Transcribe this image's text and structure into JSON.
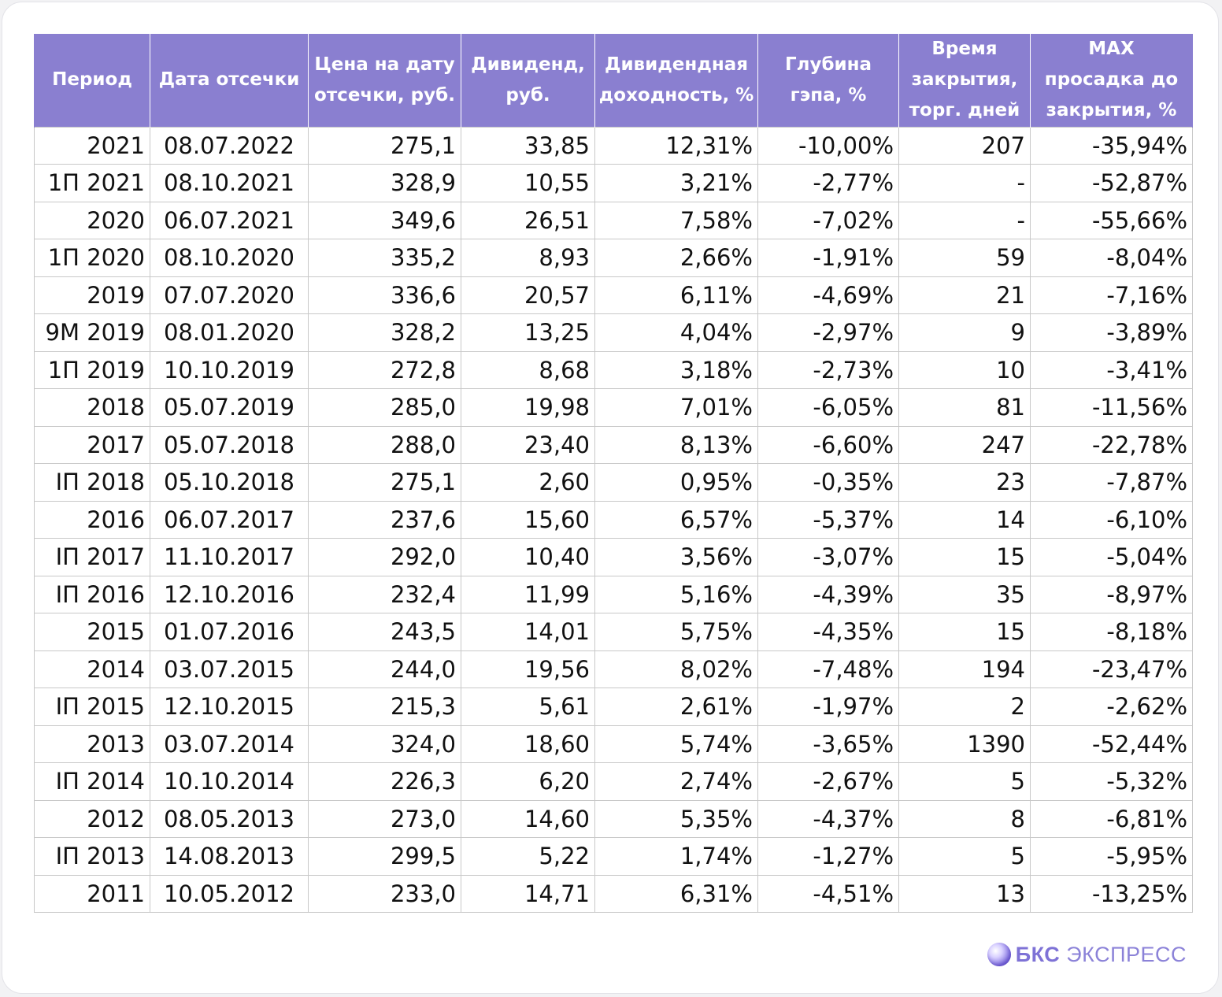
{
  "table": {
    "headers": [
      [
        "Период"
      ],
      [
        "Дата отсечки"
      ],
      [
        "Цена на дату",
        "отсечки, руб."
      ],
      [
        "Дивиденд,",
        "руб."
      ],
      [
        "Дивидендная",
        "доходность, %"
      ],
      [
        "Глубина",
        "гэпа, %"
      ],
      [
        "Время",
        "закрытия,",
        "торг. дней"
      ],
      [
        "MAX",
        "просадка до",
        "закрытия, %"
      ]
    ],
    "rows": [
      [
        "2021",
        "08.07.2022",
        "275,1",
        "33,85",
        "12,31%",
        "-10,00%",
        "207",
        "-35,94%"
      ],
      [
        "1П 2021",
        "08.10.2021",
        "328,9",
        "10,55",
        "3,21%",
        "-2,77%",
        "-",
        "-52,87%"
      ],
      [
        "2020",
        "06.07.2021",
        "349,6",
        "26,51",
        "7,58%",
        "-7,02%",
        "-",
        "-55,66%"
      ],
      [
        "1П 2020",
        "08.10.2020",
        "335,2",
        "8,93",
        "2,66%",
        "-1,91%",
        "59",
        "-8,04%"
      ],
      [
        "2019",
        "07.07.2020",
        "336,6",
        "20,57",
        "6,11%",
        "-4,69%",
        "21",
        "-7,16%"
      ],
      [
        "9М 2019",
        "08.01.2020",
        "328,2",
        "13,25",
        "4,04%",
        "-2,97%",
        "9",
        "-3,89%"
      ],
      [
        "1П 2019",
        "10.10.2019",
        "272,8",
        "8,68",
        "3,18%",
        "-2,73%",
        "10",
        "-3,41%"
      ],
      [
        "2018",
        "05.07.2019",
        "285,0",
        "19,98",
        "7,01%",
        "-6,05%",
        "81",
        "-11,56%"
      ],
      [
        "2017",
        "05.07.2018",
        "288,0",
        "23,40",
        "8,13%",
        "-6,60%",
        "247",
        "-22,78%"
      ],
      [
        "IП 2018",
        "05.10.2018",
        "275,1",
        "2,60",
        "0,95%",
        "-0,35%",
        "23",
        "-7,87%"
      ],
      [
        "2016",
        "06.07.2017",
        "237,6",
        "15,60",
        "6,57%",
        "-5,37%",
        "14",
        "-6,10%"
      ],
      [
        "IП 2017",
        "11.10.2017",
        "292,0",
        "10,40",
        "3,56%",
        "-3,07%",
        "15",
        "-5,04%"
      ],
      [
        "IП 2016",
        "12.10.2016",
        "232,4",
        "11,99",
        "5,16%",
        "-4,39%",
        "35",
        "-8,97%"
      ],
      [
        "2015",
        "01.07.2016",
        "243,5",
        "14,01",
        "5,75%",
        "-4,35%",
        "15",
        "-8,18%"
      ],
      [
        "2014",
        "03.07.2015",
        "244,0",
        "19,56",
        "8,02%",
        "-7,48%",
        "194",
        "-23,47%"
      ],
      [
        "IП 2015",
        "12.10.2015",
        "215,3",
        "5,61",
        "2,61%",
        "-1,97%",
        "2",
        "-2,62%"
      ],
      [
        "2013",
        "03.07.2014",
        "324,0",
        "18,60",
        "5,74%",
        "-3,65%",
        "1390",
        "-52,44%"
      ],
      [
        "IП 2014",
        "10.10.2014",
        "226,3",
        "6,20",
        "2,74%",
        "-2,67%",
        "5",
        "-5,32%"
      ],
      [
        "2012",
        "08.05.2013",
        "273,0",
        "14,60",
        "5,35%",
        "-4,37%",
        "8",
        "-6,81%"
      ],
      [
        "IП 2013",
        "14.08.2013",
        "299,5",
        "5,22",
        "1,74%",
        "-1,27%",
        "5",
        "-5,95%"
      ],
      [
        "2011",
        "10.05.2012",
        "233,0",
        "14,71",
        "6,31%",
        "-4,51%",
        "13",
        "-13,25%"
      ]
    ]
  },
  "brand": {
    "bold": "БКС",
    "regular": "ЭКСПРЕСС"
  },
  "colors": {
    "header_bg": "#8a7fd0",
    "header_text": "#ffffff",
    "grid": "#c8c8c8",
    "brand": "#8b82d8"
  }
}
